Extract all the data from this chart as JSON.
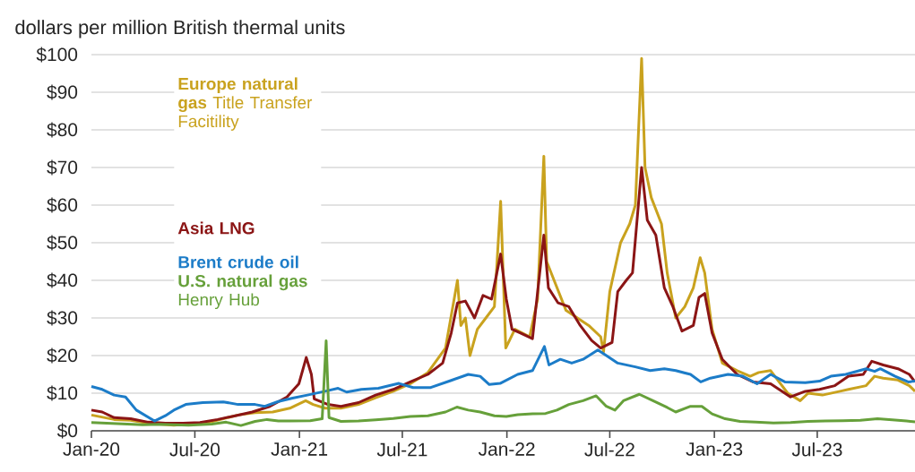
{
  "chart_data": {
    "type": "line",
    "ylabel": "dollars per million British thermal units",
    "xlim": [
      "2020-01-01",
      "2023-12-20"
    ],
    "xticks": [
      {
        "value": "2020-01-01",
        "label": "Jan-20"
      },
      {
        "value": "2020-07-01",
        "label": "Jul-20"
      },
      {
        "value": "2021-01-01",
        "label": "Jan-21"
      },
      {
        "value": "2021-07-01",
        "label": "Jul-21"
      },
      {
        "value": "2022-01-01",
        "label": "Jan-22"
      },
      {
        "value": "2022-07-01",
        "label": "Jul-22"
      },
      {
        "value": "2023-01-01",
        "label": "Jan-23"
      },
      {
        "value": "2023-07-01",
        "label": "Jul-23"
      }
    ],
    "ylim": [
      0,
      100
    ],
    "yticks": [
      {
        "value": 0,
        "label": "$0"
      },
      {
        "value": 10,
        "label": "$10"
      },
      {
        "value": 20,
        "label": "$20"
      },
      {
        "value": 30,
        "label": "$30"
      },
      {
        "value": 40,
        "label": "$40"
      },
      {
        "value": 50,
        "label": "$50"
      },
      {
        "value": 60,
        "label": "$60"
      },
      {
        "value": 70,
        "label": "$70"
      },
      {
        "value": 80,
        "label": "$80"
      },
      {
        "value": 90,
        "label": "$90"
      },
      {
        "value": 100,
        "label": "$100"
      }
    ],
    "grid": "y",
    "legend": "top left",
    "line_style": "solid",
    "marker": "none",
    "series": [
      {
        "name": "**Europe natural gas** Title Transfer Facitility",
        "color": "#c9a21e",
        "x": [
          "2020-01-01",
          "2020-02-10",
          "2020-03-10",
          "2020-04-10",
          "2020-05-25",
          "2020-06-20",
          "2020-07-20",
          "2020-08-15",
          "2020-09-15",
          "2020-10-15",
          "2020-11-15",
          "2020-12-15",
          "2021-01-12",
          "2021-01-25",
          "2021-02-15",
          "2021-03-15",
          "2021-04-15",
          "2021-05-15",
          "2021-06-15",
          "2021-07-15",
          "2021-08-15",
          "2021-09-15",
          "2021-10-06",
          "2021-10-12",
          "2021-10-20",
          "2021-10-28",
          "2021-11-10",
          "2021-11-25",
          "2021-12-10",
          "2021-12-21",
          "2021-12-30",
          "2022-01-15",
          "2022-02-10",
          "2022-02-24",
          "2022-03-07",
          "2022-03-12",
          "2022-03-25",
          "2022-04-15",
          "2022-05-05",
          "2022-05-25",
          "2022-06-15",
          "2022-06-20",
          "2022-07-01",
          "2022-07-20",
          "2022-08-05",
          "2022-08-15",
          "2022-08-26",
          "2022-09-01",
          "2022-09-12",
          "2022-09-30",
          "2022-10-10",
          "2022-10-25",
          "2022-11-10",
          "2022-11-25",
          "2022-12-07",
          "2022-12-15",
          "2022-12-28",
          "2023-01-15",
          "2023-02-10",
          "2023-03-05",
          "2023-03-20",
          "2023-04-10",
          "2023-05-10",
          "2023-06-01",
          "2023-06-15",
          "2023-07-10",
          "2023-08-10",
          "2023-08-25",
          "2023-09-25",
          "2023-10-10",
          "2023-10-25",
          "2023-11-20",
          "2023-12-10",
          "2023-12-20"
        ],
        "values": [
          4.2,
          3,
          2.8,
          2,
          1.5,
          1.8,
          2,
          3,
          4.2,
          4.8,
          5,
          6,
          8,
          7,
          6,
          6,
          7,
          8.8,
          10.5,
          12.5,
          15.5,
          22,
          40,
          28,
          30,
          20,
          27,
          30,
          33,
          61,
          22,
          27,
          25,
          35,
          73,
          45,
          40,
          32,
          30,
          28,
          25,
          21,
          37,
          50,
          55,
          60,
          99,
          70,
          62,
          55,
          42,
          30,
          33,
          38,
          46,
          42,
          27,
          18,
          16,
          14.5,
          15.5,
          16,
          10,
          8,
          10,
          9.5,
          10.5,
          11,
          12,
          14.5,
          14,
          13.5,
          12,
          10.5
        ]
      },
      {
        "name": "**Asia LNG**",
        "color": "#8b1515",
        "x": [
          "2020-01-01",
          "2020-01-20",
          "2020-02-10",
          "2020-03-10",
          "2020-04-10",
          "2020-05-10",
          "2020-06-10",
          "2020-07-10",
          "2020-08-10",
          "2020-09-10",
          "2020-10-10",
          "2020-11-10",
          "2020-12-10",
          "2020-12-31",
          "2021-01-13",
          "2021-01-22",
          "2021-01-27",
          "2021-02-20",
          "2021-03-15",
          "2021-04-15",
          "2021-05-15",
          "2021-06-15",
          "2021-07-15",
          "2021-08-15",
          "2021-09-10",
          "2021-09-25",
          "2021-10-06",
          "2021-10-20",
          "2021-11-05",
          "2021-11-20",
          "2021-12-05",
          "2021-12-21",
          "2021-12-31",
          "2022-01-10",
          "2022-01-25",
          "2022-02-15",
          "2022-03-07",
          "2022-03-15",
          "2022-04-01",
          "2022-04-20",
          "2022-05-10",
          "2022-05-30",
          "2022-06-15",
          "2022-07-05",
          "2022-07-15",
          "2022-07-30",
          "2022-08-10",
          "2022-08-26",
          "2022-09-05",
          "2022-09-20",
          "2022-10-05",
          "2022-10-20",
          "2022-11-05",
          "2022-11-25",
          "2022-12-05",
          "2022-12-15",
          "2022-12-28",
          "2023-01-15",
          "2023-02-10",
          "2023-03-10",
          "2023-04-10",
          "2023-05-15",
          "2023-06-10",
          "2023-07-05",
          "2023-08-01",
          "2023-08-25",
          "2023-09-20",
          "2023-10-05",
          "2023-10-25",
          "2023-11-20",
          "2023-12-10",
          "2023-12-20"
        ],
        "values": [
          5.5,
          5,
          3.5,
          3.2,
          2.3,
          2,
          2,
          2.2,
          3,
          4,
          5,
          6.5,
          9,
          12.5,
          19.5,
          15,
          8.5,
          7,
          6.5,
          7.5,
          9.5,
          11,
          13,
          15,
          18,
          26,
          34,
          34.5,
          30,
          36,
          35,
          47,
          35,
          27,
          26,
          24.5,
          52,
          38,
          34,
          33,
          28,
          24,
          22,
          23.5,
          37,
          40,
          42,
          70,
          56,
          52,
          38,
          33,
          26.5,
          28,
          35.5,
          36.5,
          26,
          19,
          15,
          13,
          12.5,
          9,
          10.5,
          11,
          12,
          14.5,
          15,
          18.5,
          17.5,
          16.5,
          15,
          13
        ]
      },
      {
        "name": "**Brent crude oil**",
        "color": "#1c7cc8",
        "x": [
          "2020-01-01",
          "2020-01-20",
          "2020-02-10",
          "2020-03-01",
          "2020-03-20",
          "2020-04-21",
          "2020-05-10",
          "2020-05-25",
          "2020-06-15",
          "2020-07-15",
          "2020-08-20",
          "2020-09-15",
          "2020-10-15",
          "2020-11-01",
          "2020-11-25",
          "2020-12-20",
          "2021-01-15",
          "2021-02-15",
          "2021-03-10",
          "2021-03-25",
          "2021-04-20",
          "2021-05-20",
          "2021-06-25",
          "2021-07-20",
          "2021-08-20",
          "2021-09-25",
          "2021-10-25",
          "2021-11-15",
          "2021-12-01",
          "2021-12-20",
          "2022-01-20",
          "2022-02-15",
          "2022-03-08",
          "2022-03-16",
          "2022-04-05",
          "2022-04-25",
          "2022-05-15",
          "2022-06-10",
          "2022-06-25",
          "2022-07-15",
          "2022-08-15",
          "2022-09-10",
          "2022-10-05",
          "2022-10-25",
          "2022-11-20",
          "2022-12-08",
          "2022-12-25",
          "2023-01-25",
          "2023-02-20",
          "2023-03-17",
          "2023-04-10",
          "2023-05-05",
          "2023-06-10",
          "2023-07-05",
          "2023-07-25",
          "2023-08-20",
          "2023-09-25",
          "2023-10-10",
          "2023-10-20",
          "2023-11-15",
          "2023-12-08",
          "2023-12-20"
        ],
        "values": [
          11.8,
          11,
          9.5,
          9,
          5.5,
          2.6,
          4,
          5.5,
          7,
          7.5,
          7.7,
          7,
          7,
          6.5,
          7.8,
          8.7,
          9.5,
          10.5,
          11.3,
          10.3,
          11,
          11.3,
          12.6,
          11.5,
          11.5,
          13.4,
          15,
          14.5,
          12.3,
          12.6,
          15,
          16,
          22.4,
          17.5,
          19,
          18,
          19,
          21.5,
          20,
          18,
          17,
          16,
          16.5,
          16,
          15,
          13,
          14,
          15,
          14.5,
          12.5,
          15,
          13,
          12.8,
          13.2,
          14.5,
          15,
          16.5,
          15.8,
          16.5,
          14.5,
          13,
          13.2
        ]
      },
      {
        "name": "**U.S. natural gas** Henry Hub",
        "color": "#66a03a",
        "x": [
          "2020-01-01",
          "2020-02-15",
          "2020-03-31",
          "2020-05-01",
          "2020-06-20",
          "2020-07-31",
          "2020-08-25",
          "2020-09-20",
          "2020-10-15",
          "2020-11-05",
          "2020-11-25",
          "2020-12-15",
          "2021-01-20",
          "2021-02-10",
          "2021-02-17",
          "2021-02-22",
          "2021-03-15",
          "2021-04-15",
          "2021-05-15",
          "2021-06-15",
          "2021-07-15",
          "2021-08-15",
          "2021-09-15",
          "2021-10-05",
          "2021-10-25",
          "2021-11-15",
          "2021-12-10",
          "2021-12-31",
          "2022-01-20",
          "2022-02-15",
          "2022-03-10",
          "2022-03-30",
          "2022-04-20",
          "2022-05-15",
          "2022-06-07",
          "2022-06-25",
          "2022-07-10",
          "2022-07-25",
          "2022-08-22",
          "2022-09-15",
          "2022-10-10",
          "2022-10-25",
          "2022-11-20",
          "2022-12-10",
          "2022-12-28",
          "2023-01-20",
          "2023-02-15",
          "2023-03-15",
          "2023-04-15",
          "2023-05-15",
          "2023-06-15",
          "2023-07-15",
          "2023-08-15",
          "2023-09-15",
          "2023-10-15",
          "2023-11-10",
          "2023-12-05",
          "2023-12-20"
        ],
        "values": [
          2.2,
          1.9,
          1.6,
          1.7,
          1.5,
          1.8,
          2.3,
          1.4,
          2.5,
          3,
          2.6,
          2.6,
          2.7,
          3.2,
          23.9,
          3.5,
          2.5,
          2.6,
          2.9,
          3.3,
          3.8,
          4,
          5,
          6.3,
          5.5,
          5,
          4,
          3.8,
          4.3,
          4.5,
          4.6,
          5.5,
          7,
          8,
          9.3,
          6.5,
          5.5,
          8,
          9.7,
          8,
          6.2,
          5,
          6.5,
          6.5,
          4.5,
          3.2,
          2.5,
          2.3,
          2.1,
          2.2,
          2.5,
          2.6,
          2.7,
          2.8,
          3.2,
          2.9,
          2.6,
          2.4
        ]
      }
    ]
  }
}
